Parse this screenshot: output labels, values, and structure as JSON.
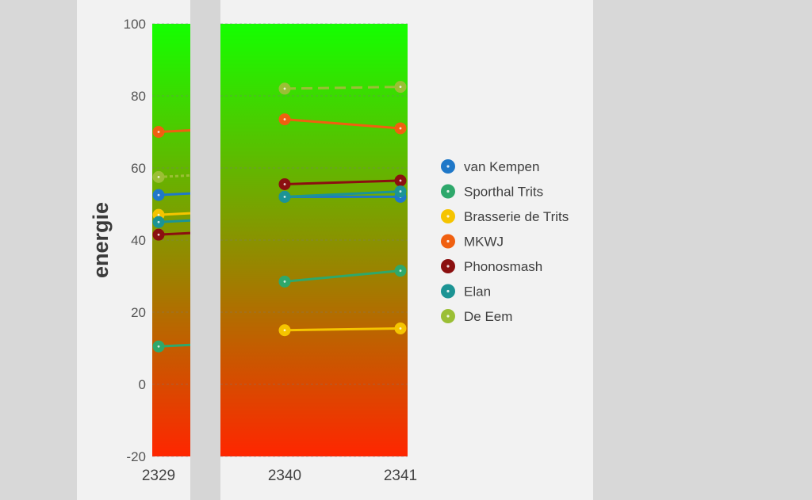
{
  "chart_data": {
    "type": "line",
    "ylabel": "energie",
    "ylim": [
      -20,
      100
    ],
    "yticks": [
      100,
      80,
      60,
      40,
      20,
      0,
      -20
    ],
    "x_visible_ticks": [
      "2329",
      "2340",
      "2341"
    ],
    "background": "vertical gradient green (top) to red (bottom)",
    "gradient_colors": {
      "top": "#14ff00",
      "bottom": "#ff2600"
    },
    "grid": "dashed horizontal",
    "legend_position": "right",
    "segments": [
      {
        "x": [
          "2329"
        ]
      },
      {
        "x": [
          "2340",
          "2341"
        ]
      }
    ],
    "series": [
      {
        "name": "van Kempen",
        "color": "#1f78c8",
        "values": [
          {
            "x": "2329",
            "y": 52.5
          },
          {
            "x": "2340",
            "y": 52
          },
          {
            "x": "2341",
            "y": 52
          }
        ]
      },
      {
        "name": "Sporthal Trits",
        "color": "#2ea86b",
        "values": [
          {
            "x": "2329",
            "y": 10.5
          },
          {
            "x": "2340",
            "y": 28.5
          },
          {
            "x": "2341",
            "y": 31.5
          }
        ]
      },
      {
        "name": "Brasserie de Trits",
        "color": "#f5c400",
        "values": [
          {
            "x": "2329",
            "y": 47
          },
          {
            "x": "2340",
            "y": 15
          },
          {
            "x": "2341",
            "y": 15.5
          }
        ]
      },
      {
        "name": "MKWJ",
        "color": "#f06010",
        "values": [
          {
            "x": "2329",
            "y": 70
          },
          {
            "x": "2340",
            "y": 73.5
          },
          {
            "x": "2341",
            "y": 71
          }
        ]
      },
      {
        "name": "Phonosmash",
        "color": "#8b1010",
        "values": [
          {
            "x": "2329",
            "y": 41.5
          },
          {
            "x": "2340",
            "y": 55.5
          },
          {
            "x": "2341",
            "y": 56.5
          }
        ]
      },
      {
        "name": "Elan",
        "color": "#1c9494",
        "values": [
          {
            "x": "2329",
            "y": 45
          },
          {
            "x": "2340",
            "y": 52
          },
          {
            "x": "2341",
            "y": 53.5
          }
        ]
      },
      {
        "name": "De Eem",
        "color": "#9bbf35",
        "values": [
          {
            "x": "2329",
            "y": 57.5
          },
          {
            "x": "2340",
            "y": 82
          },
          {
            "x": "2341",
            "y": 82.5
          }
        ]
      }
    ]
  }
}
